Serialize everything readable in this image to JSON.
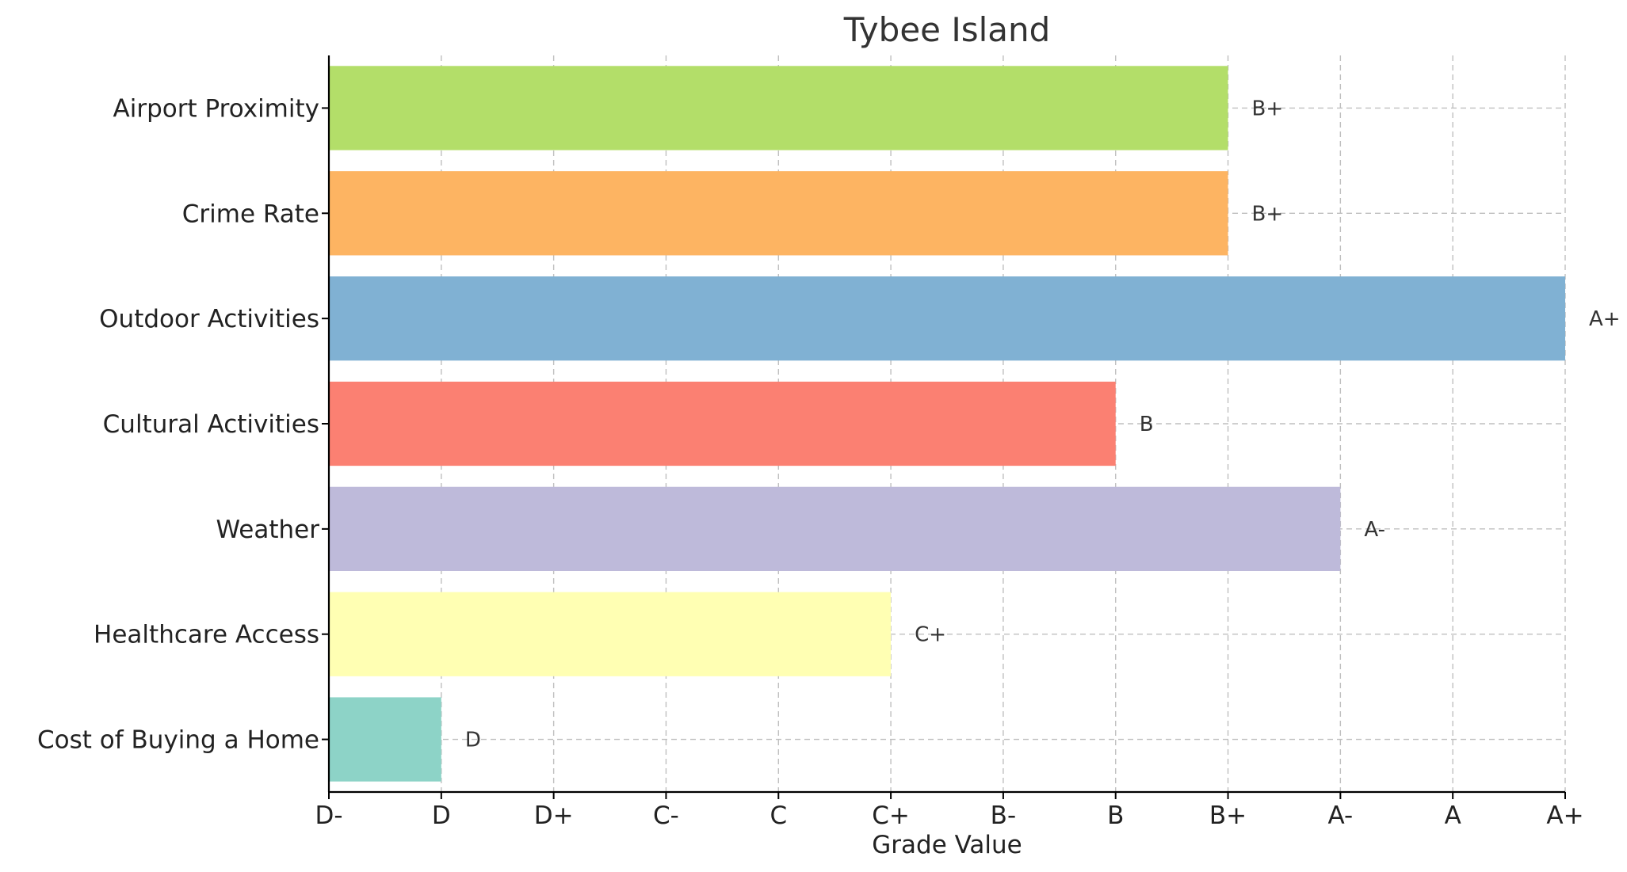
{
  "chart_data": {
    "type": "bar",
    "orientation": "horizontal",
    "title": "Tybee Island",
    "xlabel": "Grade Value",
    "ylabel": "",
    "grade_scale": [
      "D-",
      "D",
      "D+",
      "C-",
      "C",
      "C+",
      "B-",
      "B",
      "B+",
      "A-",
      "A",
      "A+"
    ],
    "xlim": [
      "D-",
      "A+"
    ],
    "grid": true,
    "categories": [
      "Cost of Buying a Home",
      "Healthcare Access",
      "Weather",
      "Cultural Activities",
      "Outdoor Activities",
      "Crime Rate",
      "Airport Proximity"
    ],
    "values": [
      "D",
      "C+",
      "A-",
      "B",
      "A+",
      "B+",
      "B+"
    ],
    "colors": [
      "#8dd3c7",
      "#ffffb3",
      "#bebada",
      "#fb8072",
      "#80b1d3",
      "#fdb462",
      "#b3de69"
    ]
  }
}
